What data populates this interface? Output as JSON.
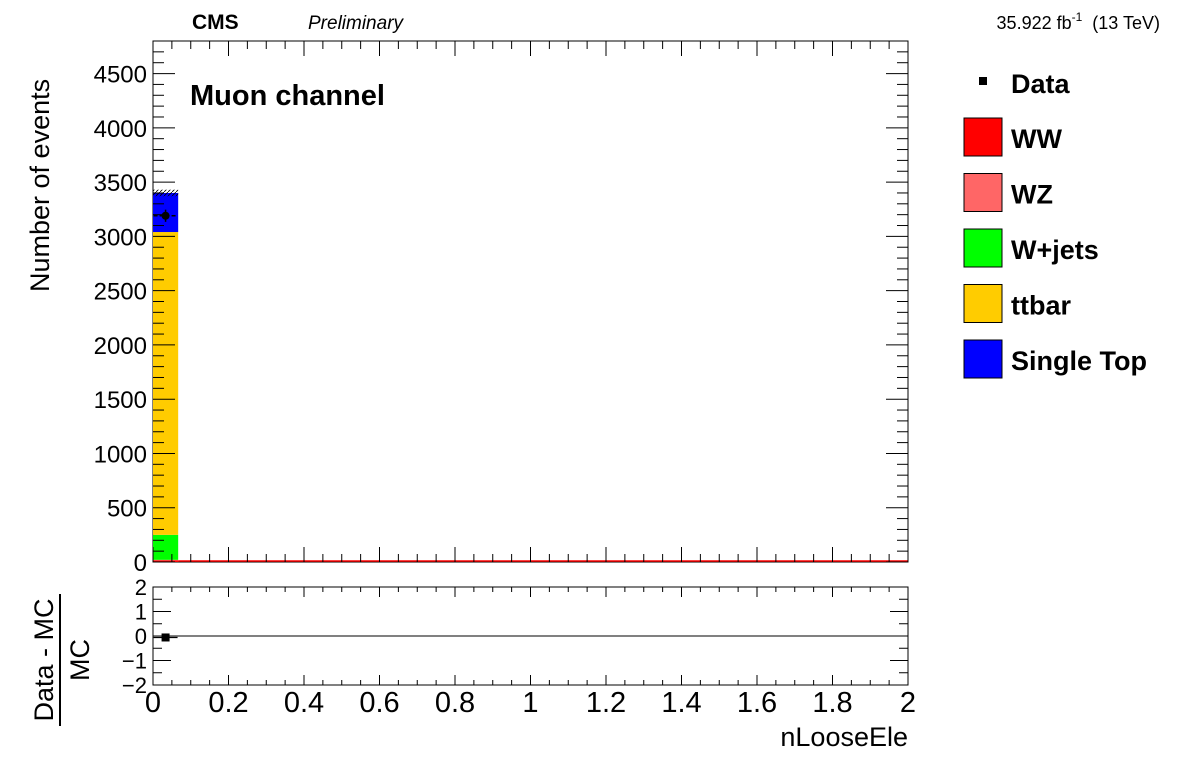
{
  "header": {
    "experiment": "CMS",
    "status": "Preliminary",
    "lumi_value": "35.922 fb",
    "lumi_exponent": "-1",
    "energy": "(13 TeV)"
  },
  "annotation": "Muon channel",
  "legend": {
    "data_label": "Data",
    "entries": [
      {
        "label": "WW",
        "color": "#ff0000"
      },
      {
        "label": "WZ",
        "color": "#ff6666"
      },
      {
        "label": "W+jets",
        "color": "#00ff00"
      },
      {
        "label": "ttbar",
        "color": "#ffcc00"
      },
      {
        "label": "Single Top",
        "color": "#0000ff"
      }
    ]
  },
  "chart_data": [
    {
      "type": "bar",
      "stacked": true,
      "ylabel": "Number of events",
      "ylim": [
        0,
        4800
      ],
      "yticks": [
        0,
        500,
        1000,
        1500,
        2000,
        2500,
        3000,
        3500,
        4000,
        4500
      ],
      "xlim": [
        0,
        2
      ],
      "bin_edges": [
        0,
        0.0667
      ],
      "series": [
        {
          "name": "WW",
          "color": "#ff0000",
          "values": [
            15
          ]
        },
        {
          "name": "WZ",
          "color": "#ff6666",
          "values": [
            5
          ]
        },
        {
          "name": "W+jets",
          "color": "#00ff00",
          "values": [
            230
          ]
        },
        {
          "name": "ttbar",
          "color": "#ffcc00",
          "values": [
            2790
          ]
        },
        {
          "name": "Single Top",
          "color": "#0000ff",
          "values": [
            360
          ]
        }
      ],
      "mc_total": [
        3400
      ],
      "mc_uncertainty": [
        30
      ],
      "data": {
        "x": [
          0.0333
        ],
        "y": [
          3190
        ],
        "yerr": [
          56
        ]
      }
    },
    {
      "type": "scatter",
      "ylabel": "Data - MC / MC",
      "ylabel_numerator": "Data - MC",
      "ylabel_denominator": "MC",
      "xlabel": "nLooseEle",
      "ylim": [
        -2,
        2
      ],
      "yticks": [
        2,
        1,
        0,
        -1,
        -2
      ],
      "ytick_labels": [
        "2",
        "1",
        "0",
        "−1",
        "−2"
      ],
      "xlim": [
        0,
        2
      ],
      "xticks": [
        0,
        0.2,
        0.4,
        0.6,
        0.8,
        1,
        1.2,
        1.4,
        1.6,
        1.8,
        2
      ],
      "xtick_labels": [
        "0",
        "0.2",
        "0.4",
        "0.6",
        "0.8",
        "1",
        "1.2",
        "1.4",
        "1.6",
        "1.8",
        "2"
      ],
      "x": [
        0.0333
      ],
      "y": [
        -0.06
      ],
      "reference_line": 0
    }
  ]
}
